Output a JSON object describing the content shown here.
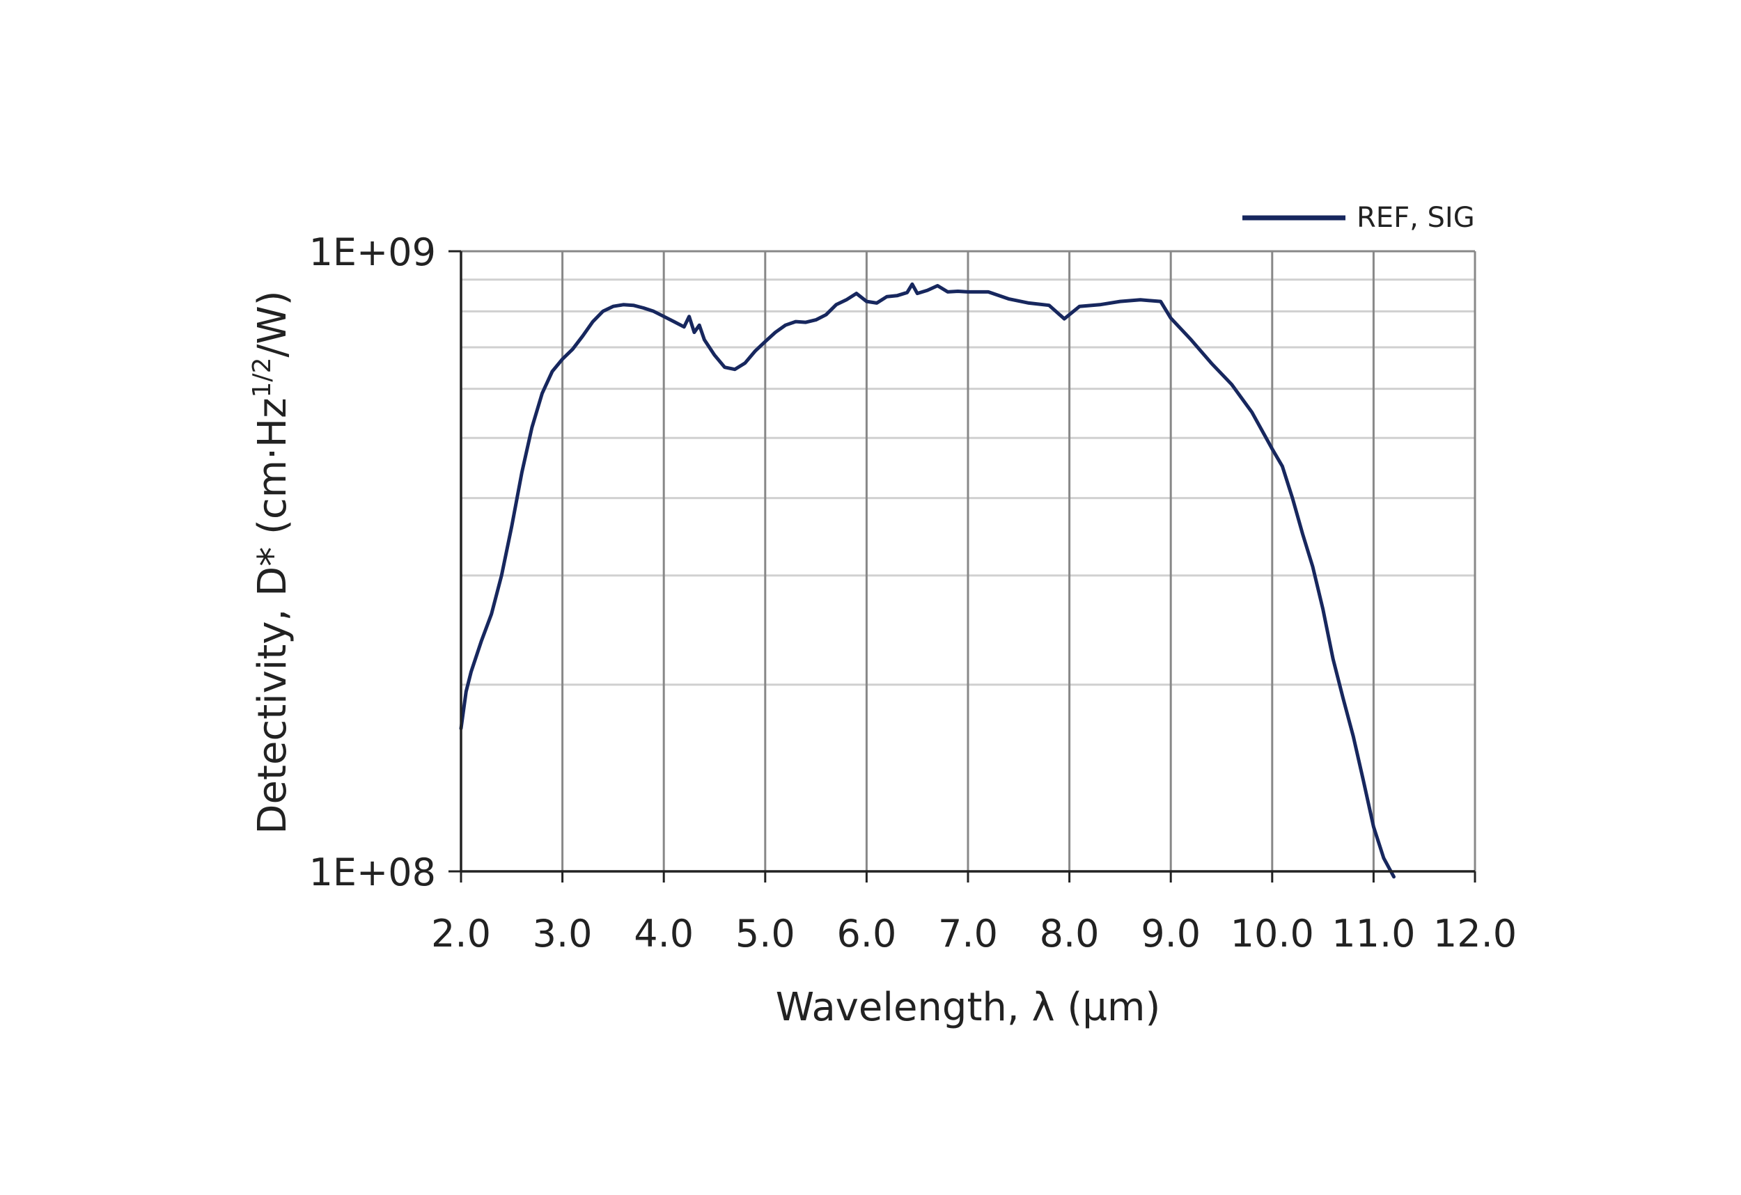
{
  "chart_data": {
    "type": "line",
    "title": "",
    "xlabel": "Wavelength, λ (µm)",
    "ylabel": {
      "main": "Detectivity, D* (cm·Hz",
      "sup": "1/2",
      "tail": "/W)"
    },
    "x_ticks": [
      "2.0",
      "3.0",
      "4.0",
      "5.0",
      "6.0",
      "7.0",
      "8.0",
      "9.0",
      "10.0",
      "11.0",
      "12.0"
    ],
    "y_ticks": [
      "1E+08",
      "1E+09"
    ],
    "xlim": [
      2.0,
      12.0
    ],
    "ylim": [
      100000000,
      1000000000
    ],
    "y_scale": "log",
    "grid": true,
    "legend_position": "top-right",
    "colors": {
      "series": "#17275e",
      "grid_major": "#888888",
      "grid_minor": "#d0d0d0",
      "axis": "#222222"
    },
    "series": [
      {
        "name": "REF, SIG",
        "x": [
          2.0,
          2.05,
          2.1,
          2.2,
          2.3,
          2.4,
          2.5,
          2.6,
          2.7,
          2.8,
          2.9,
          3.0,
          3.1,
          3.2,
          3.3,
          3.4,
          3.5,
          3.6,
          3.7,
          3.8,
          3.9,
          4.0,
          4.1,
          4.2,
          4.25,
          4.3,
          4.35,
          4.4,
          4.5,
          4.6,
          4.7,
          4.8,
          4.9,
          5.0,
          5.1,
          5.2,
          5.3,
          5.4,
          5.5,
          5.6,
          5.7,
          5.8,
          5.9,
          6.0,
          6.1,
          6.2,
          6.3,
          6.4,
          6.45,
          6.5,
          6.6,
          6.7,
          6.8,
          6.9,
          7.0,
          7.2,
          7.4,
          7.6,
          7.8,
          7.95,
          8.1,
          8.3,
          8.5,
          8.7,
          8.9,
          9.0,
          9.2,
          9.4,
          9.6,
          9.8,
          10.0,
          10.1,
          10.2,
          10.3,
          10.4,
          10.5,
          10.6,
          10.7,
          10.8,
          10.9,
          11.0,
          11.1,
          11.2
        ],
        "y": [
          170000000,
          195000000,
          210000000,
          235000000,
          260000000,
          300000000,
          360000000,
          440000000,
          520000000,
          590000000,
          640000000,
          670000000,
          695000000,
          730000000,
          770000000,
          800000000,
          815000000,
          820000000,
          818000000,
          810000000,
          800000000,
          785000000,
          770000000,
          755000000,
          785000000,
          740000000,
          760000000,
          720000000,
          680000000,
          650000000,
          645000000,
          660000000,
          690000000,
          715000000,
          740000000,
          760000000,
          770000000,
          768000000,
          775000000,
          790000000,
          820000000,
          835000000,
          855000000,
          830000000,
          825000000,
          845000000,
          848000000,
          858000000,
          885000000,
          855000000,
          865000000,
          880000000,
          860000000,
          862000000,
          860000000,
          860000000,
          838000000,
          825000000,
          818000000,
          778000000,
          815000000,
          820000000,
          830000000,
          835000000,
          830000000,
          780000000,
          720000000,
          660000000,
          610000000,
          550000000,
          480000000,
          450000000,
          400000000,
          350000000,
          310000000,
          265000000,
          220000000,
          190000000,
          165000000,
          140000000,
          118000000,
          105000000,
          98000000
        ]
      }
    ]
  }
}
